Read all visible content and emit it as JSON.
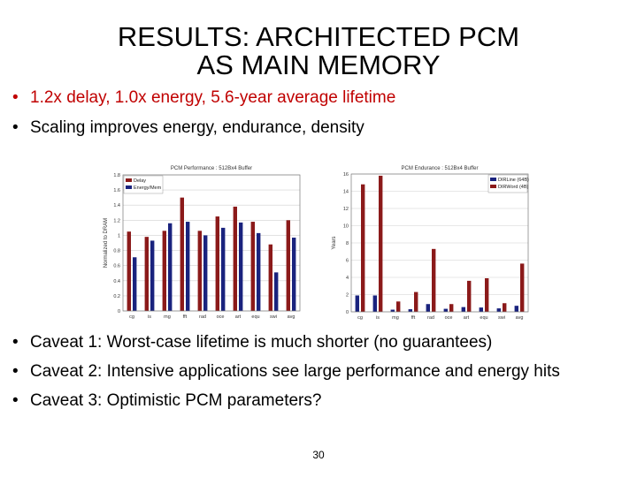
{
  "slide": {
    "title_line1": "RESULTS: ARCHITECTED PCM",
    "title_line2": "AS MAIN MEMORY",
    "top_bullets": [
      "1.2x delay, 1.0x energy, 5.6-year average lifetime",
      "Scaling improves energy, endurance, density"
    ],
    "bottom_bullets": [
      "Caveat 1: Worst-case lifetime is much shorter (no guarantees)",
      "Caveat 2: Intensive applications see large performance and energy hits",
      "Caveat 3: Optimistic PCM parameters?"
    ],
    "bullet_glyph": "•",
    "page_number": "30",
    "colors": {
      "highlight": "#c00000",
      "series_red": "#8b1a1a",
      "series_blue": "#1a237e"
    }
  },
  "chart_data": [
    {
      "type": "bar",
      "title": "PCM Performance : 512Bx4 Buffer",
      "ylabel": "Normalized to DRAM",
      "xlabel": "",
      "categories": [
        "cg",
        "is",
        "mg",
        "fft",
        "rad",
        "oce",
        "art",
        "equ",
        "swi",
        "avg"
      ],
      "series": [
        {
          "name": "Delay",
          "color": "#8b1a1a",
          "values": [
            1.05,
            0.98,
            1.06,
            1.5,
            1.06,
            1.25,
            1.38,
            1.18,
            0.88,
            1.2
          ]
        },
        {
          "name": "Energy/Mem",
          "color": "#1a237e",
          "values": [
            0.71,
            0.93,
            1.16,
            1.18,
            1.0,
            1.1,
            1.17,
            1.03,
            0.51,
            0.97
          ]
        }
      ],
      "ylim": [
        0,
        1.8
      ],
      "yticks": [
        "0",
        "0.2",
        "0.4",
        "0.6",
        "0.8",
        "1",
        "1.2",
        "1.4",
        "1.6",
        "1.8"
      ],
      "grid": true,
      "legend": "top-left"
    },
    {
      "type": "bar",
      "title": "PCM Endurance : 512Bx4 Buffer",
      "ylabel": "Years",
      "xlabel": "",
      "categories": [
        "cg",
        "is",
        "mg",
        "fft",
        "rad",
        "oce",
        "art",
        "equ",
        "swi",
        "avg"
      ],
      "series": [
        {
          "name": "DIRLine (64B)",
          "color": "#1a237e",
          "values": [
            1.9,
            1.9,
            0.25,
            0.3,
            0.9,
            0.35,
            0.55,
            0.5,
            0.4,
            0.7
          ]
        },
        {
          "name": "DIRWord (4B)",
          "color": "#8b1a1a",
          "values": [
            14.8,
            15.8,
            1.2,
            2.3,
            7.3,
            0.9,
            3.6,
            3.9,
            1.0,
            5.6
          ]
        }
      ],
      "ylim": [
        0,
        16
      ],
      "yticks": [
        "0",
        "2",
        "4",
        "6",
        "8",
        "10",
        "12",
        "14",
        "16"
      ],
      "grid": true,
      "legend": "top-right"
    }
  ]
}
